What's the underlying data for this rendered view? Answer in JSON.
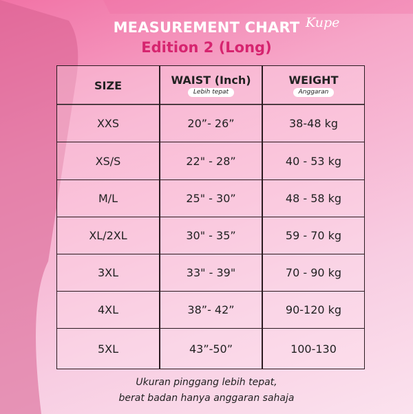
{
  "header": {
    "title": "MEASUREMENT CHART",
    "brand": "Kupe",
    "subtitle": "Edition 2 (Long)"
  },
  "table": {
    "columns": [
      {
        "label": "SIZE"
      },
      {
        "label": "WAIST (Inch)",
        "note": "Lebih tepat"
      },
      {
        "label": "WEIGHT",
        "note": "Anggaran"
      }
    ],
    "rows": [
      [
        "XXS",
        "20”- 26”",
        "38-48 kg"
      ],
      [
        "XS/S",
        "22\" - 28”",
        "40 - 53 kg"
      ],
      [
        "M/L",
        "25\" - 30”",
        "48 - 58 kg"
      ],
      [
        "XL/2XL",
        "30\" - 35”",
        "59 - 70 kg"
      ],
      [
        "3XL",
        "33\" - 39\"",
        "70 - 90 kg"
      ],
      [
        "4XL",
        "38”- 42”",
        "90-120 kg"
      ],
      [
        "5XL",
        "43”-50”",
        "100-130"
      ]
    ]
  },
  "footer": {
    "lines": [
      "Ukuran pinggang lebih tepat,",
      "berat badan hanya anggaran sahaja"
    ]
  }
}
